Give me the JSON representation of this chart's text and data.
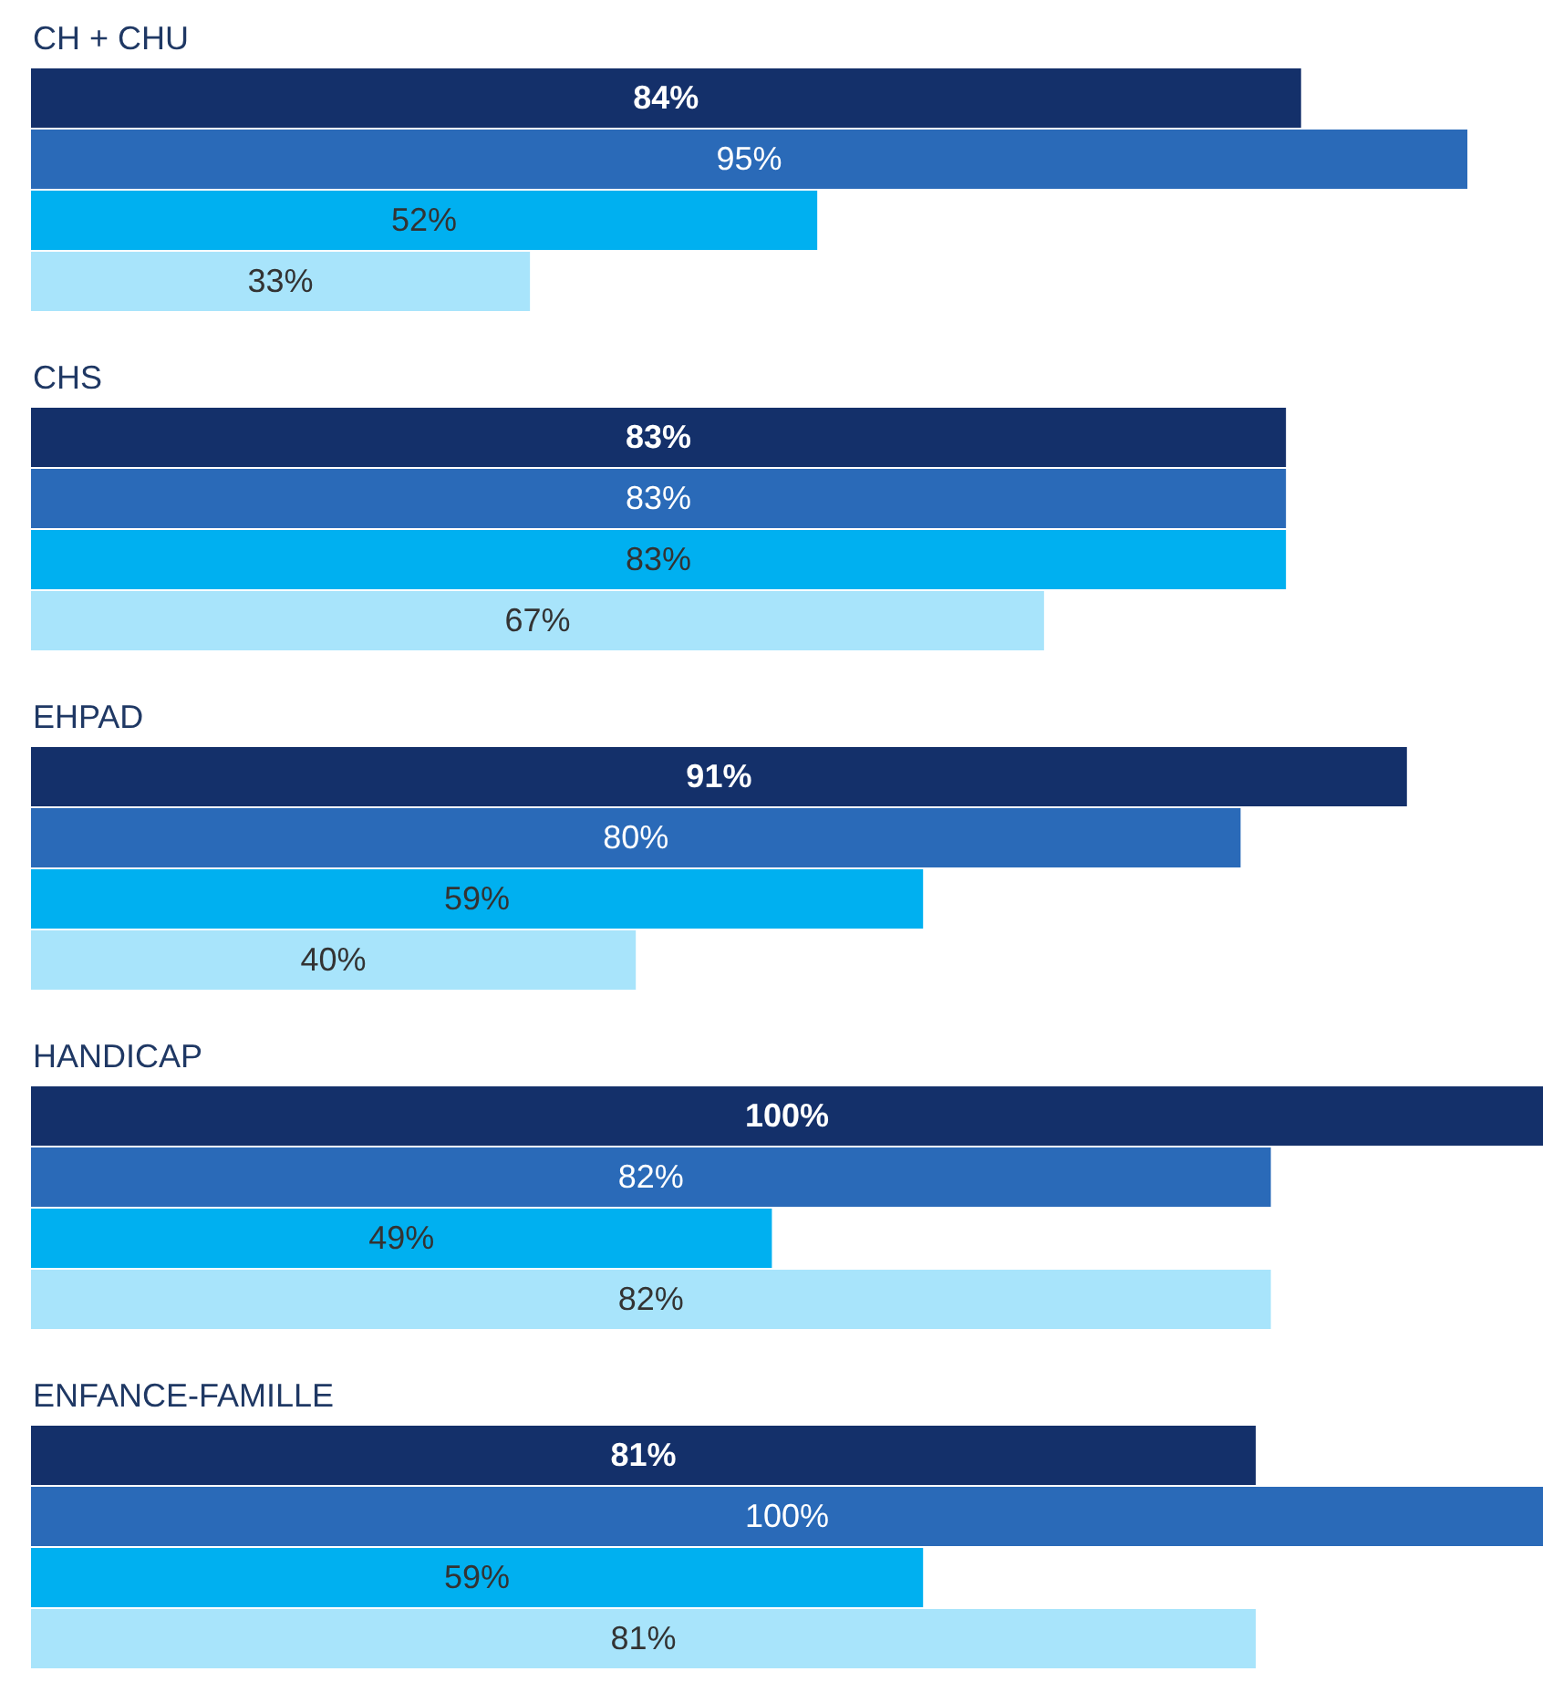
{
  "chart_data": [
    {
      "type": "bar",
      "orientation": "horizontal",
      "title": "CH + CHU",
      "categories": [
        null,
        null,
        null,
        null
      ],
      "values": [
        84,
        95,
        52,
        33
      ],
      "value_labels": [
        "84%",
        "95%",
        "52%",
        "33%"
      ],
      "colors": [
        "#14306a",
        "#2a6ab8",
        "#00b0f0",
        "#a8e4fb"
      ],
      "xlim": [
        0,
        100
      ]
    },
    {
      "type": "bar",
      "orientation": "horizontal",
      "title": "CHS",
      "categories": [
        null,
        null,
        null,
        null
      ],
      "values": [
        83,
        83,
        83,
        67
      ],
      "value_labels": [
        "83%",
        "83%",
        "83%",
        "67%"
      ],
      "colors": [
        "#14306a",
        "#2a6ab8",
        "#00b0f0",
        "#a8e4fb"
      ],
      "xlim": [
        0,
        100
      ]
    },
    {
      "type": "bar",
      "orientation": "horizontal",
      "title": "EHPAD",
      "categories": [
        null,
        null,
        null,
        null
      ],
      "values": [
        91,
        80,
        59,
        40
      ],
      "value_labels": [
        "91%",
        "80%",
        "59%",
        "40%"
      ],
      "colors": [
        "#14306a",
        "#2a6ab8",
        "#00b0f0",
        "#a8e4fb"
      ],
      "xlim": [
        0,
        100
      ]
    },
    {
      "type": "bar",
      "orientation": "horizontal",
      "title": "HANDICAP",
      "categories": [
        null,
        null,
        null,
        null
      ],
      "values": [
        100,
        82,
        49,
        82
      ],
      "value_labels": [
        "100%",
        "82%",
        "49%",
        "82%"
      ],
      "colors": [
        "#14306a",
        "#2a6ab8",
        "#00b0f0",
        "#a8e4fb"
      ],
      "xlim": [
        0,
        100
      ]
    },
    {
      "type": "bar",
      "orientation": "horizontal",
      "title": "ENFANCE-FAMILLE",
      "categories": [
        null,
        null,
        null,
        null
      ],
      "values": [
        81,
        100,
        59,
        81
      ],
      "value_labels": [
        "81%",
        "100%",
        "59%",
        "81%"
      ],
      "colors": [
        "#14306a",
        "#2a6ab8",
        "#00b0f0",
        "#a8e4fb"
      ],
      "xlim": [
        0,
        100
      ]
    }
  ]
}
